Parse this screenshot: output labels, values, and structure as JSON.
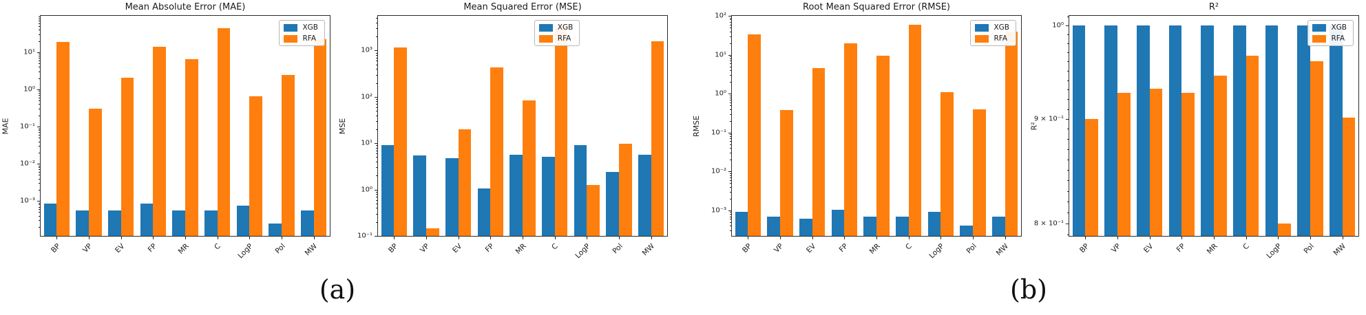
{
  "captions": {
    "a": "(a)",
    "b": "(b)"
  },
  "legend": {
    "entries": [
      "XGB",
      "RFA"
    ]
  },
  "colors": {
    "xgb": "#1f77b4",
    "rfa": "#ff7f0e"
  },
  "chart_data": [
    {
      "type": "bar",
      "title": "Mean Absolute Error (MAE)",
      "ylabel": "MAE",
      "yscale": "log",
      "ylim": [
        0.000115,
        95
      ],
      "grid": false,
      "legend_position": "top-right",
      "yticks": [
        {
          "value": 10,
          "label": "10¹"
        },
        {
          "value": 1,
          "label": "10⁰"
        },
        {
          "value": 0.1,
          "label": "10⁻¹"
        },
        {
          "value": 0.01,
          "label": "10⁻²"
        },
        {
          "value": 0.001,
          "label": "10⁻³"
        }
      ],
      "categories": [
        "BP",
        "VP",
        "EV",
        "FP",
        "MR",
        "C",
        "LogP",
        "Pol",
        "MW"
      ],
      "series": [
        {
          "name": "XGB",
          "color": "#1f77b4",
          "values": [
            0.00085,
            0.00055,
            0.00055,
            0.00085,
            0.00055,
            0.00055,
            0.00075,
            0.00025,
            0.00055
          ]
        },
        {
          "name": "RFA",
          "color": "#ff7f0e",
          "values": [
            19,
            0.3,
            2.1,
            14,
            6.5,
            45,
            0.65,
            2.4,
            22
          ]
        }
      ]
    },
    {
      "type": "bar",
      "title": "Mean Squared Error (MSE)",
      "ylabel": "MSE",
      "yscale": "log",
      "ylim": [
        0.1,
        5600
      ],
      "grid": false,
      "legend_position": "top-center",
      "yticks": [
        {
          "value": 1000,
          "label": "10³"
        },
        {
          "value": 100,
          "label": "10²"
        },
        {
          "value": 10,
          "label": "10¹"
        },
        {
          "value": 1,
          "label": "10⁰"
        },
        {
          "value": 0.1,
          "label": "10⁻¹"
        }
      ],
      "categories": [
        "BP",
        "VP",
        "EV",
        "FP",
        "MR",
        "C",
        "LogP",
        "Pol",
        "MW"
      ],
      "series": [
        {
          "name": "XGB",
          "color": "#1f77b4",
          "values": [
            9,
            5.5,
            4.8,
            1.05,
            5.6,
            5.1,
            9,
            2.4,
            5.7
          ]
        },
        {
          "name": "RFA",
          "color": "#ff7f0e",
          "values": [
            1150,
            0.145,
            20,
            430,
            85,
            3200,
            1.25,
            9.7,
            1600
          ]
        }
      ]
    },
    {
      "type": "bar",
      "title": "Root Mean Squared Error (RMSE)",
      "ylabel": "RMSE",
      "yscale": "log",
      "ylim": [
        0.00022,
        100
      ],
      "grid": false,
      "legend_position": "top-right",
      "yticks": [
        {
          "value": 100,
          "label": "10²"
        },
        {
          "value": 10,
          "label": "10¹"
        },
        {
          "value": 1,
          "label": "10⁰"
        },
        {
          "value": 0.1,
          "label": "10⁻¹"
        },
        {
          "value": 0.01,
          "label": "10⁻²"
        },
        {
          "value": 0.001,
          "label": "10⁻³"
        }
      ],
      "categories": [
        "BP",
        "VP",
        "EV",
        "FP",
        "MR",
        "C",
        "LogP",
        "Pol",
        "MW"
      ],
      "series": [
        {
          "name": "XGB",
          "color": "#1f77b4",
          "values": [
            0.00092,
            0.0007,
            0.0006,
            0.00102,
            0.0007,
            0.0007,
            0.00092,
            0.0004,
            0.0007
          ]
        },
        {
          "name": "RFA",
          "color": "#ff7f0e",
          "values": [
            34,
            0.38,
            4.5,
            20,
            9.5,
            58,
            1.1,
            0.4,
            40
          ]
        }
      ]
    },
    {
      "type": "bar",
      "title": "R²",
      "ylabel": "R²",
      "yscale": "log",
      "ylim": [
        0.789,
        1.0106
      ],
      "grid": false,
      "legend_position": "top-right",
      "yticks": [
        {
          "value": 1.0,
          "label": "10⁰"
        },
        {
          "value": 0.9,
          "label": "9 × 10⁻¹"
        },
        {
          "value": 0.8,
          "label": "8 × 10⁻¹"
        }
      ],
      "categories": [
        "BP",
        "VP",
        "EV",
        "FP",
        "MR",
        "C",
        "LogP",
        "Pol",
        "MW"
      ],
      "series": [
        {
          "name": "XGB",
          "color": "#1f77b4",
          "values": [
            0.9995,
            0.9995,
            0.9995,
            0.9995,
            0.9995,
            0.9995,
            0.9995,
            0.9995,
            0.9995
          ]
        },
        {
          "name": "RFA",
          "color": "#ff7f0e",
          "values": [
            0.9,
            0.927,
            0.931,
            0.927,
            0.945,
            0.966,
            0.8,
            0.96,
            0.901
          ]
        }
      ]
    }
  ]
}
